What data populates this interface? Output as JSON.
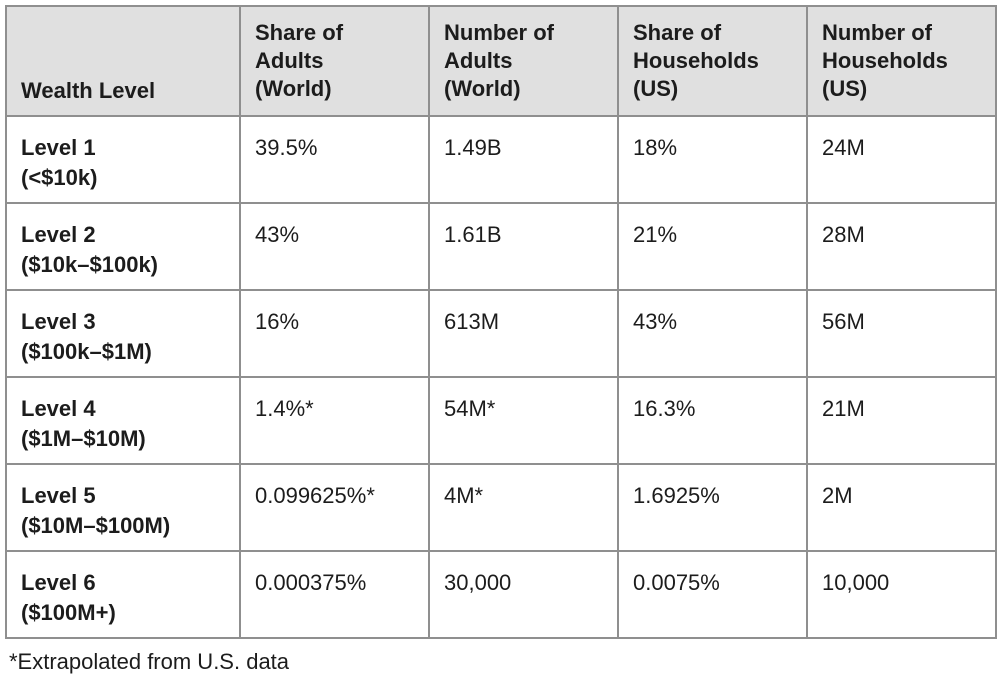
{
  "table": {
    "headers": [
      "Wealth Level",
      "Share of\nAdults\n(World)",
      "Number of\nAdults\n(World)",
      "Share of\nHouseholds\n(US)",
      "Number of\nHouseholds\n(US)"
    ],
    "rows": [
      {
        "level": "Level 1\n(<$10k)",
        "share_adults_world": "39.5%",
        "number_adults_world": "1.49B",
        "share_households_us": "18%",
        "number_households_us": "24M"
      },
      {
        "level": "Level 2\n($10k–$100k)",
        "share_adults_world": "43%",
        "number_adults_world": "1.61B",
        "share_households_us": "21%",
        "number_households_us": "28M"
      },
      {
        "level": "Level 3\n($100k–$1M)",
        "share_adults_world": "16%",
        "number_adults_world": "613M",
        "share_households_us": "43%",
        "number_households_us": "56M"
      },
      {
        "level": "Level 4\n($1M–$10M)",
        "share_adults_world": "1.4%*",
        "number_adults_world": "54M*",
        "share_households_us": "16.3%",
        "number_households_us": "21M"
      },
      {
        "level": "Level 5\n($10M–$100M)",
        "share_adults_world": "0.099625%*",
        "number_adults_world": "4M*",
        "share_households_us": "1.6925%",
        "number_households_us": "2M"
      },
      {
        "level": "Level 6\n($100M+)",
        "share_adults_world": "0.000375%",
        "number_adults_world": "30,000",
        "share_households_us": "0.0075%",
        "number_households_us": "10,000"
      }
    ]
  },
  "footnote": "*Extrapolated from U.S. data",
  "colors": {
    "header_background": "#e0e0e0",
    "border": "#8f8f8f",
    "text": "#1c1c1c"
  },
  "chart_data": {
    "type": "table",
    "title": "",
    "columns": [
      "Wealth Level",
      "Share of Adults (World)",
      "Number of Adults (World)",
      "Share of Households (US)",
      "Number of Households (US)"
    ],
    "rows": [
      [
        "Level 1 (<$10k)",
        "39.5%",
        "1.49B",
        "18%",
        "24M"
      ],
      [
        "Level 2 ($10k–$100k)",
        "43%",
        "1.61B",
        "21%",
        "28M"
      ],
      [
        "Level 3 ($100k–$1M)",
        "16%",
        "613M",
        "43%",
        "56M"
      ],
      [
        "Level 4 ($1M–$10M)",
        "1.4%*",
        "54M*",
        "16.3%",
        "21M"
      ],
      [
        "Level 5 ($10M–$100M)",
        "0.099625%*",
        "4M*",
        "1.6925%",
        "2M"
      ],
      [
        "Level 6 ($100M+)",
        "0.000375%",
        "30,000",
        "0.0075%",
        "10,000"
      ]
    ],
    "footnote": "*Extrapolated from U.S. data",
    "layout_hints": {
      "header_shaded": true,
      "first_column_bold": true,
      "grid": true
    }
  }
}
